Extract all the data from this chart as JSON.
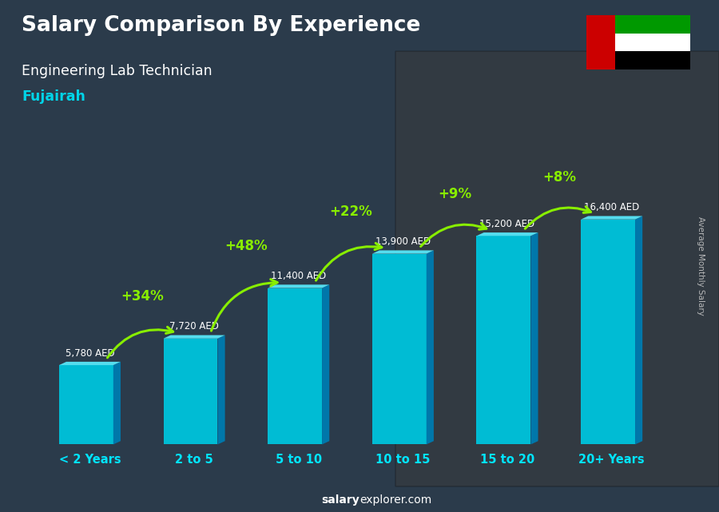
{
  "title": "Salary Comparison By Experience",
  "subtitle": "Engineering Lab Technician",
  "city": "Fujairah",
  "categories": [
    "< 2 Years",
    "2 to 5",
    "5 to 10",
    "10 to 15",
    "15 to 20",
    "20+ Years"
  ],
  "values": [
    5780,
    7720,
    11400,
    13900,
    15200,
    16400
  ],
  "value_labels": [
    "5,780 AED",
    "7,720 AED",
    "11,400 AED",
    "13,900 AED",
    "15,200 AED",
    "16,400 AED"
  ],
  "pct_changes": [
    "+34%",
    "+48%",
    "+22%",
    "+9%",
    "+8%"
  ],
  "bar_face_color": "#00bcd4",
  "bar_right_color": "#0077aa",
  "bar_top_color": "#55ddee",
  "title_color": "#ffffff",
  "subtitle_color": "#ffffff",
  "city_color": "#00d4e8",
  "category_color": "#00e5ff",
  "value_color": "#ffffff",
  "pct_color": "#88ee00",
  "arrow_color": "#88ee00",
  "footer_salary_color": "#ffffff",
  "footer_explorer_color": "#ffffff",
  "ylabel": "Average Monthly Salary",
  "ylabel_color": "#cccccc",
  "bg_overlay_color": "#1a2a3a",
  "bg_overlay_alpha": 0.45,
  "figsize": [
    9.0,
    6.41
  ],
  "dpi": 100
}
